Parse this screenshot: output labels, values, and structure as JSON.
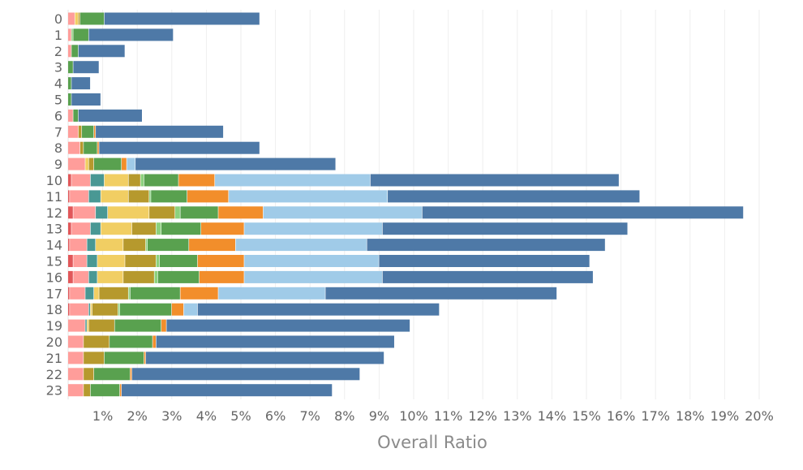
{
  "chart_data": {
    "type": "bar",
    "orientation": "horizontal",
    "stacked": true,
    "xlabel": "Overall Ratio",
    "ylabel": "",
    "title": "",
    "grid": true,
    "legend": "none",
    "xlim": [
      0,
      21
    ],
    "x_ticks": [
      "1%",
      "2%",
      "3%",
      "4%",
      "5%",
      "6%",
      "7%",
      "8%",
      "9%",
      "10%",
      "11%",
      "12%",
      "13%",
      "14%",
      "15%",
      "16%",
      "17%",
      "18%",
      "19%",
      "20%"
    ],
    "categories": [
      "0",
      "1",
      "2",
      "3",
      "4",
      "5",
      "6",
      "7",
      "8",
      "9",
      "10",
      "11",
      "12",
      "13",
      "14",
      "15",
      "16",
      "17",
      "18",
      "19",
      "20",
      "21",
      "22",
      "23"
    ],
    "series": [
      {
        "color": "#e15759",
        "values": [
          0,
          0,
          0,
          0,
          0,
          0,
          0,
          0,
          0,
          0,
          0.1,
          0.05,
          0.15,
          0.1,
          0.05,
          0.15,
          0.15,
          0.05,
          0.05,
          0,
          0,
          0,
          0,
          0
        ]
      },
      {
        "color": "#ff9d9a",
        "values": [
          0.2,
          0.1,
          0.1,
          0,
          0,
          0,
          0.15,
          0.3,
          0.35,
          0.5,
          0.55,
          0.55,
          0.65,
          0.55,
          0.5,
          0.4,
          0.45,
          0.45,
          0.55,
          0.5,
          0.45,
          0.45,
          0.45,
          0.45
        ]
      },
      {
        "color": "#499894",
        "values": [
          0,
          0,
          0,
          0,
          0,
          0,
          0,
          0,
          0,
          0,
          0.4,
          0.35,
          0.35,
          0.3,
          0.25,
          0.3,
          0.25,
          0.25,
          0.05,
          0.05,
          0,
          0,
          0,
          0
        ]
      },
      {
        "color": "#f1ce63",
        "values": [
          0.1,
          0,
          0,
          0,
          0,
          0,
          0,
          0,
          0,
          0.1,
          0.7,
          0.8,
          1.2,
          0.9,
          0.8,
          0.8,
          0.75,
          0.15,
          0.05,
          0.05,
          0,
          0,
          0,
          0
        ]
      },
      {
        "color": "#b6992d",
        "values": [
          0.05,
          0,
          0,
          0,
          0,
          0,
          0,
          0.1,
          0.1,
          0.15,
          0.35,
          0.6,
          0.75,
          0.7,
          0.65,
          0.9,
          0.9,
          0.85,
          0.75,
          0.75,
          0.75,
          0.6,
          0.3,
          0.2
        ]
      },
      {
        "color": "#8cd17d",
        "values": [
          0,
          0.05,
          0,
          0,
          0,
          0,
          0,
          0,
          0,
          0,
          0.1,
          0.05,
          0.15,
          0.15,
          0.05,
          0.1,
          0.1,
          0.05,
          0.05,
          0,
          0,
          0,
          0,
          0
        ]
      },
      {
        "color": "#59a14f",
        "values": [
          0.7,
          0.45,
          0.2,
          0.15,
          0.1,
          0.1,
          0.15,
          0.35,
          0.4,
          0.8,
          1.0,
          1.05,
          1.1,
          1.15,
          1.2,
          1.1,
          1.2,
          1.45,
          1.5,
          1.35,
          1.25,
          1.15,
          1.05,
          0.85
        ]
      },
      {
        "color": "#f28e2b",
        "values": [
          0,
          0,
          0,
          0,
          0,
          0,
          0,
          0.05,
          0.05,
          0.15,
          1.05,
          1.2,
          1.3,
          1.25,
          1.35,
          1.35,
          1.3,
          1.1,
          0.35,
          0.15,
          0.1,
          0.05,
          0.05,
          0.05
        ]
      },
      {
        "color": "#a0cbe8",
        "values": [
          0,
          0,
          0,
          0,
          0,
          0,
          0,
          0,
          0,
          0.25,
          4.5,
          4.6,
          4.6,
          4.0,
          3.8,
          3.9,
          4.0,
          3.1,
          0.4,
          0,
          0,
          0,
          0,
          0
        ]
      },
      {
        "color": "#4e79a7",
        "values": [
          4.5,
          2.45,
          1.35,
          0.75,
          0.55,
          0.85,
          1.85,
          3.7,
          4.65,
          5.8,
          7.2,
          7.3,
          9.3,
          7.1,
          6.9,
          6.1,
          6.1,
          6.7,
          7.0,
          7.05,
          6.9,
          6.9,
          6.6,
          6.1
        ]
      }
    ]
  }
}
